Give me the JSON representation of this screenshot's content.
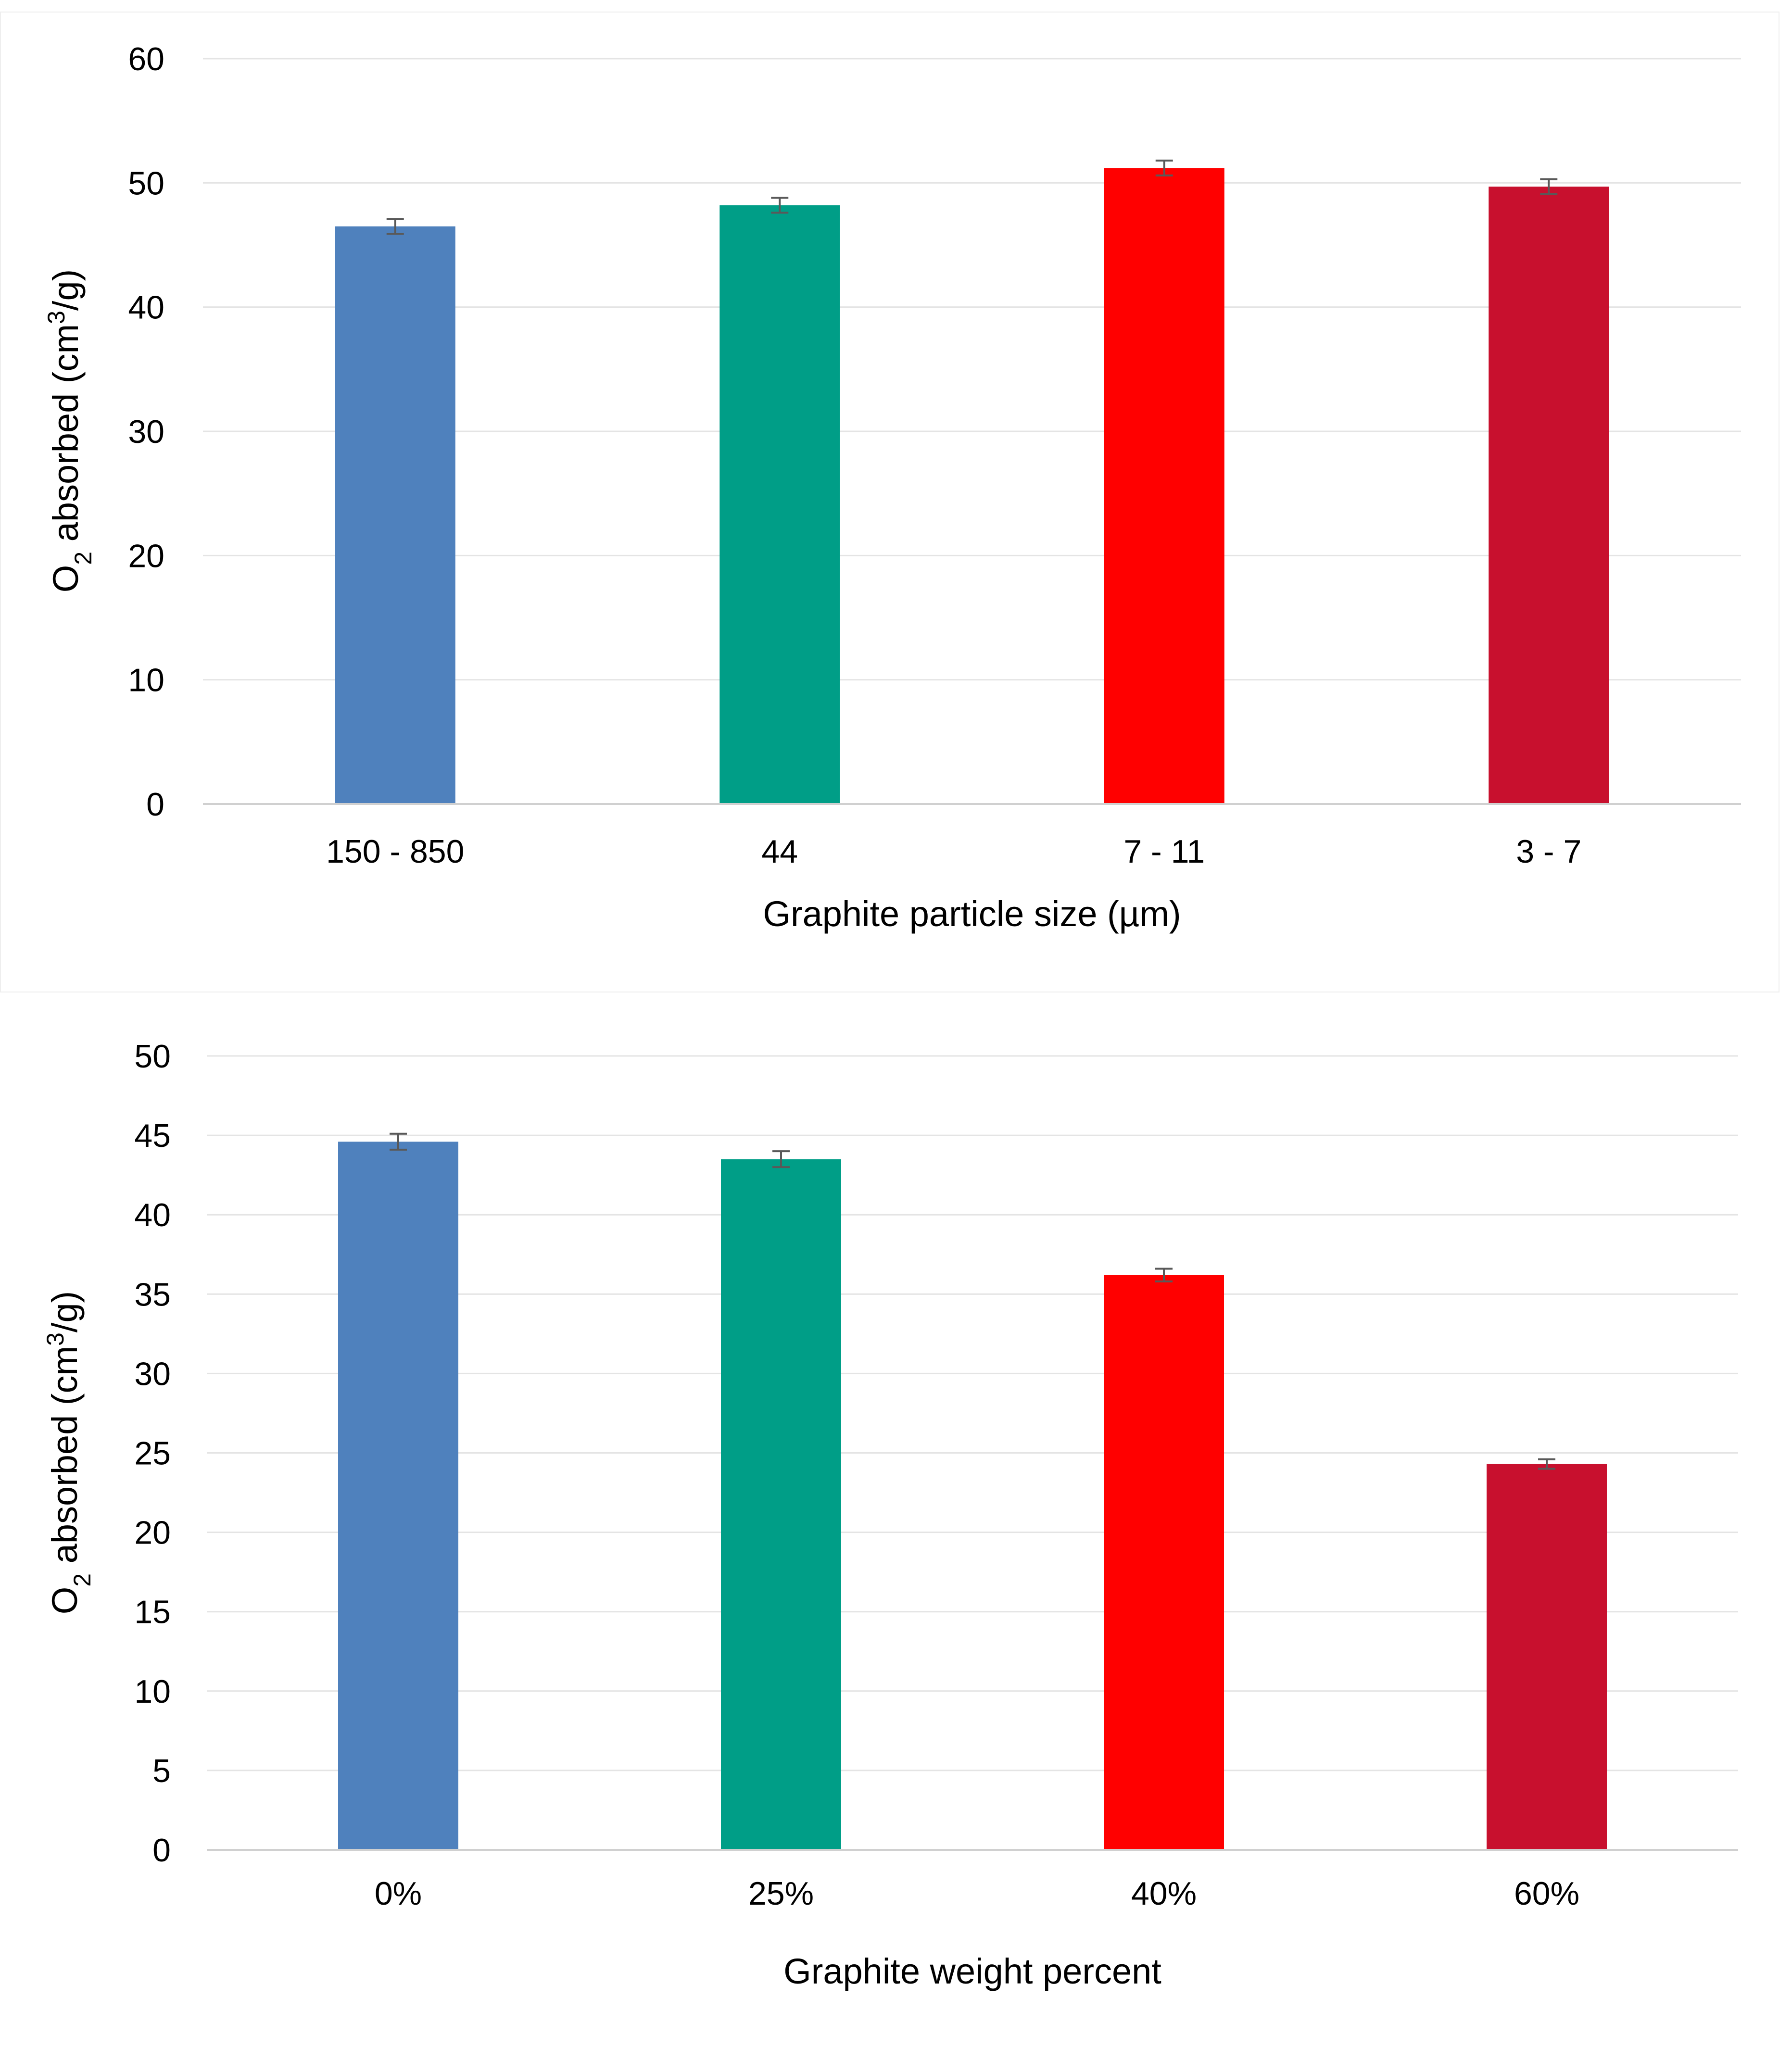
{
  "chart_data": [
    {
      "type": "bar",
      "title": "",
      "xlabel": "Graphite particle size (µm)",
      "ylabel": {
        "pre": "O",
        "sub": "2",
        "mid": " absorbed (cm",
        "sup": "3",
        "post": "/g)"
      },
      "categories": [
        "150 - 850",
        "44",
        "7 - 11",
        "3 - 7"
      ],
      "values": [
        46.5,
        48.2,
        51.2,
        49.7
      ],
      "errors": [
        0.6,
        0.6,
        0.6,
        0.6
      ],
      "colors": [
        "#4f81bd",
        "#009e87",
        "#ff0000",
        "#c8102e"
      ],
      "ylim": [
        0,
        60
      ],
      "yticks": [
        0,
        10,
        20,
        30,
        40,
        50,
        60
      ],
      "grid": true
    },
    {
      "type": "bar",
      "title": "",
      "xlabel": "Graphite weight percent",
      "ylabel": {
        "pre": "O",
        "sub": "2",
        "mid": " absorbed (cm",
        "sup": "3",
        "post": "/g)"
      },
      "categories": [
        "0%",
        "25%",
        "40%",
        "60%"
      ],
      "values": [
        44.6,
        43.5,
        36.2,
        24.3
      ],
      "errors": [
        0.5,
        0.5,
        0.4,
        0.3
      ],
      "colors": [
        "#4f81bd",
        "#009e87",
        "#ff0000",
        "#c8102e"
      ],
      "ylim": [
        0,
        50
      ],
      "yticks": [
        0,
        5,
        10,
        15,
        20,
        25,
        30,
        35,
        40,
        45,
        50
      ],
      "grid": true
    }
  ]
}
